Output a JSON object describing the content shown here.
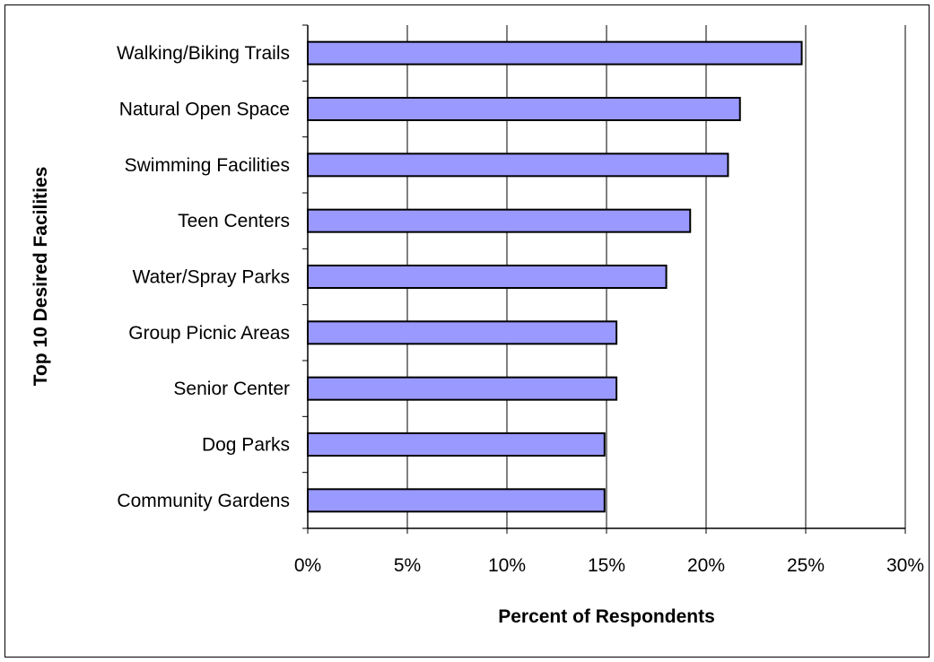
{
  "chart_data": {
    "type": "bar",
    "orientation": "horizontal",
    "title": "",
    "xlabel": "Percent of Respondents",
    "ylabel": "Top 10 Desired Facilities",
    "categories": [
      "Walking/Biking Trails",
      "Natural Open Space",
      "Swimming Facilities",
      "Teen Centers",
      "Water/Spray Parks",
      "Group Picnic Areas",
      "Senior Center",
      "Dog Parks",
      "Community Gardens"
    ],
    "values": [
      24.8,
      21.7,
      21.1,
      19.2,
      18.0,
      15.5,
      15.5,
      14.9,
      14.9
    ],
    "xlim": [
      0,
      30
    ],
    "x_ticks": [
      0,
      5,
      10,
      15,
      20,
      25,
      30
    ],
    "x_tick_labels": [
      "0%",
      "5%",
      "10%",
      "15%",
      "20%",
      "25%",
      "30%"
    ],
    "grid": "vertical",
    "legend": "none",
    "bar_color": "#9999ff",
    "bar_edge_color": "#000000"
  }
}
